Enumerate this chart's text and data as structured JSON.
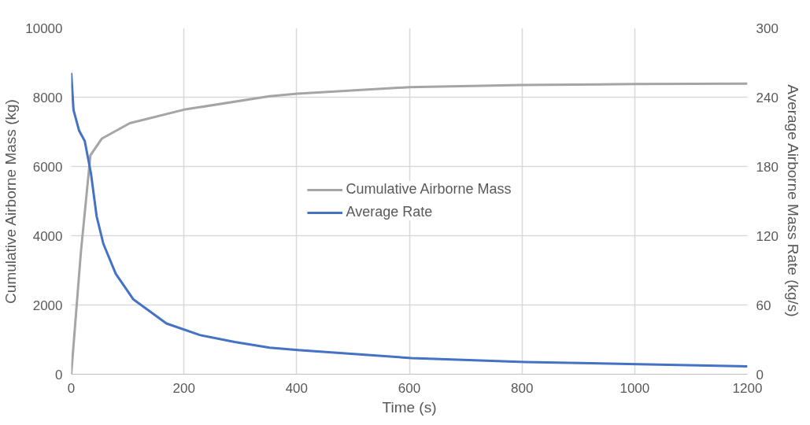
{
  "chart_data": {
    "type": "line",
    "xlabel": "Time (s)",
    "ylabel": "Cumulative Airborne Mass (kg)",
    "y2label": "Average Airborne Mass Rate (kg/s)",
    "xlim": [
      0,
      1200
    ],
    "xticks": [
      0,
      200,
      400,
      600,
      800,
      1000,
      1200
    ],
    "ylim": [
      0,
      10000
    ],
    "yticks": [
      0,
      2000,
      4000,
      6000,
      8000,
      10000
    ],
    "y2lim": [
      0,
      300
    ],
    "y2ticks": [
      0,
      60,
      120,
      180,
      240,
      300
    ],
    "grid": true,
    "legend": "center",
    "marker": "none",
    "line_style": "solid",
    "series": [
      {
        "name": "Cumulative Airborne Mass",
        "color": "#a5a5a5",
        "x": [
          0,
          17,
          34,
          54,
          104,
          200,
          352,
          402,
          600,
          800,
          1000,
          1200
        ],
        "values": [
          0,
          3500,
          6320,
          6800,
          7250,
          7640,
          8030,
          8100,
          8290,
          8350,
          8380,
          8390
        ]
      },
      {
        "name": "Average Rate",
        "color": "#4472c4",
        "axis": "y2",
        "x": [
          0,
          4,
          14,
          24,
          35,
          45,
          57,
          79,
          110,
          169,
          228,
          290,
          352,
          402,
          604,
          806,
          1007,
          1200
        ],
        "values": [
          261,
          229,
          211,
          202,
          174,
          137,
          113,
          87,
          65,
          44,
          34,
          28,
          23,
          21,
          14,
          10.5,
          8.7,
          6.9
        ]
      }
    ]
  }
}
